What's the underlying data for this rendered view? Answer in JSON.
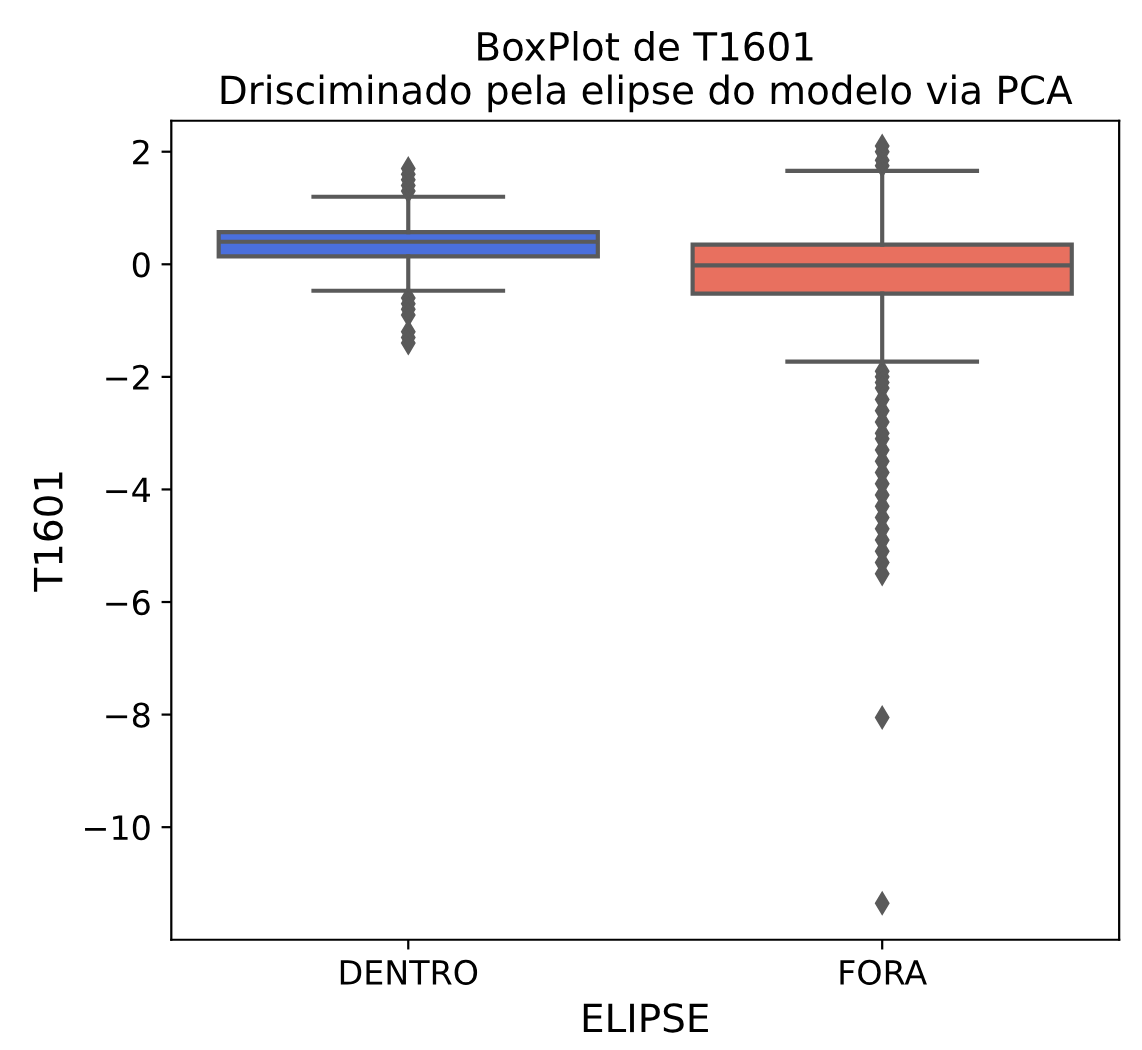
{
  "chart_data": {
    "type": "box",
    "title": "BoxPlot de T1601\nDrisciminado pela elipse do modelo via PCA",
    "xlabel": "ELIPSE",
    "ylabel": "T1601",
    "categories": [
      "DENTRO",
      "FORA"
    ],
    "colors": [
      "#4a6fdc",
      "#e8705f"
    ],
    "boxes": [
      {
        "low": -0.47,
        "q1": 0.14,
        "median": 0.4,
        "q3": 0.57,
        "high": 1.2,
        "outliers": [
          1.3,
          1.4,
          1.5,
          1.6,
          1.7,
          -0.6,
          -0.7,
          -0.8,
          -0.9,
          -1.2,
          -1.3,
          -1.4
        ]
      },
      {
        "low": -1.73,
        "q1": -0.52,
        "median": -0.02,
        "q3": 0.35,
        "high": 1.66,
        "outliers": [
          1.75,
          1.85,
          2.0,
          2.1,
          -1.9,
          -2.0,
          -2.1,
          -2.2,
          -2.4,
          -2.6,
          -2.8,
          -3.0,
          -3.1,
          -3.3,
          -3.5,
          -3.7,
          -3.9,
          -4.1,
          -4.3,
          -4.5,
          -4.7,
          -4.9,
          -5.1,
          -5.3,
          -5.5,
          -8.05,
          -11.35
        ]
      }
    ],
    "ylim": [
      -12.0,
      2.55
    ],
    "yticks": [
      -10,
      -8,
      -6,
      -4,
      -2,
      0,
      2
    ],
    "grid": false
  }
}
